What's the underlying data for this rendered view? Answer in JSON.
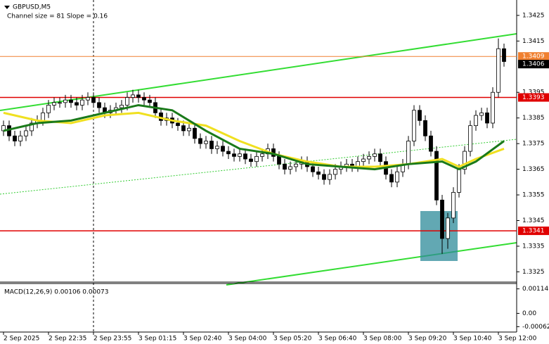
{
  "chart_data": {
    "type": "candlestick",
    "title": "GBPUSD,M5",
    "subtitle": "Channel size = 81 Slope = 0.16",
    "ylim": [
      1.3321,
      1.3431
    ],
    "yticks": [
      1.3425,
      1.3415,
      1.3395,
      1.3385,
      1.3375,
      1.3365,
      1.3355,
      1.3345,
      1.3335,
      1.3325
    ],
    "categories": [
      "2 Sep 2025",
      null,
      null,
      null,
      null,
      null,
      null,
      null,
      "2 Sep 22:35",
      null,
      null,
      null,
      null,
      null,
      null,
      null,
      "2 Sep 23:55",
      null,
      null,
      null,
      null,
      null,
      null,
      null,
      "3 Sep 01:15",
      null,
      null,
      null,
      null,
      null,
      null,
      null,
      "3 Sep 02:40",
      null,
      null,
      null,
      null,
      null,
      null,
      null,
      "3 Sep 04:00",
      null,
      null,
      null,
      null,
      null,
      null,
      null,
      "3 Sep 05:20",
      null,
      null,
      null,
      null,
      null,
      null,
      null,
      "3 Sep 06:40",
      null,
      null,
      null,
      null,
      null,
      null,
      null,
      "3 Sep 08:00",
      null,
      null,
      null,
      null,
      null,
      null,
      null,
      "3 Sep 09:20",
      null,
      null,
      null,
      null,
      null,
      null,
      null,
      "3 Sep 10:40",
      null,
      null,
      null,
      null,
      null,
      null,
      null,
      "3 Sep 12:00",
      null
    ],
    "open": [
      1.338,
      1.3382,
      1.3378,
      1.3376,
      1.3378,
      1.338,
      1.3383,
      1.3384,
      1.3387,
      1.339,
      1.3391,
      1.3391,
      1.3392,
      1.3391,
      1.339,
      1.3392,
      1.3393,
      1.3391,
      1.3389,
      1.3387,
      1.3388,
      1.3389,
      1.339,
      1.3393,
      1.3394,
      1.3393,
      1.3392,
      1.3391,
      1.3387,
      1.3384,
      1.3385,
      1.3383,
      1.3382,
      1.338,
      1.3381,
      1.3377,
      1.3375,
      1.3376,
      1.3373,
      1.3374,
      1.3372,
      1.3371,
      1.337,
      1.3371,
      1.3369,
      1.3368,
      1.337,
      1.3371,
      1.3373,
      1.337,
      1.3367,
      1.3365,
      1.3366,
      1.3367,
      1.3368,
      1.3366,
      1.3364,
      1.3363,
      1.3361,
      1.3363,
      1.3365,
      1.3366,
      1.3367,
      1.3366,
      1.3368,
      1.3369,
      1.337,
      1.3371,
      1.3368,
      1.3363,
      1.336,
      1.3364,
      1.3367,
      1.3376,
      1.3388,
      1.3384,
      1.3378,
      1.3372,
      1.3353,
      1.3338,
      1.3346,
      1.3356,
      1.3365,
      1.3372,
      1.3382,
      1.3386,
      1.3387,
      1.3383,
      1.3395,
      1.3412
    ],
    "high": [
      1.3384,
      1.3384,
      1.338,
      1.338,
      1.3382,
      1.3385,
      1.3386,
      1.3389,
      1.3392,
      1.3393,
      1.3393,
      1.3394,
      1.3394,
      1.3393,
      1.3394,
      1.3395,
      1.3395,
      1.3393,
      1.3391,
      1.339,
      1.3391,
      1.3392,
      1.3395,
      1.3396,
      1.3396,
      1.3395,
      1.3394,
      1.3393,
      1.3389,
      1.3387,
      1.3387,
      1.3385,
      1.3384,
      1.3383,
      1.3383,
      1.3379,
      1.3378,
      1.3378,
      1.3376,
      1.3376,
      1.3374,
      1.3373,
      1.3373,
      1.3373,
      1.3371,
      1.3372,
      1.3373,
      1.3375,
      1.3375,
      1.3372,
      1.3369,
      1.3368,
      1.3369,
      1.337,
      1.337,
      1.3368,
      1.3366,
      1.3365,
      1.3365,
      1.3367,
      1.3368,
      1.3369,
      1.3369,
      1.337,
      1.3371,
      1.3372,
      1.3373,
      1.3373,
      1.337,
      1.3365,
      1.3366,
      1.3369,
      1.3378,
      1.339,
      1.339,
      1.3386,
      1.338,
      1.3374,
      1.3355,
      1.3348,
      1.3358,
      1.3367,
      1.3374,
      1.3384,
      1.3388,
      1.3389,
      1.3389,
      1.3397,
      1.3416,
      1.3414
    ],
    "low": [
      1.3378,
      1.3376,
      1.3374,
      1.3374,
      1.3376,
      1.3378,
      1.3381,
      1.3382,
      1.3385,
      1.3388,
      1.3389,
      1.3389,
      1.3389,
      1.3388,
      1.3388,
      1.339,
      1.3389,
      1.3387,
      1.3385,
      1.3385,
      1.3386,
      1.3387,
      1.3388,
      1.3391,
      1.3391,
      1.339,
      1.3389,
      1.3385,
      1.3382,
      1.3382,
      1.3381,
      1.338,
      1.3378,
      1.3378,
      1.3375,
      1.3373,
      1.3373,
      1.3371,
      1.3371,
      1.337,
      1.3369,
      1.3368,
      1.3368,
      1.3367,
      1.3366,
      1.3366,
      1.3368,
      1.3369,
      1.3368,
      1.3365,
      1.3363,
      1.3363,
      1.3364,
      1.3365,
      1.3364,
      1.3362,
      1.3361,
      1.3359,
      1.3359,
      1.3361,
      1.3363,
      1.3364,
      1.3364,
      1.3364,
      1.3366,
      1.3367,
      1.3368,
      1.3366,
      1.3361,
      1.3358,
      1.3358,
      1.3362,
      1.3365,
      1.3374,
      1.3382,
      1.3376,
      1.337,
      1.3351,
      1.3332,
      1.3334,
      1.3344,
      1.3354,
      1.3363,
      1.337,
      1.338,
      1.3384,
      1.3381,
      1.3381,
      1.3393,
      1.3405
    ],
    "close": [
      1.3382,
      1.3378,
      1.3376,
      1.3378,
      1.338,
      1.3383,
      1.3384,
      1.3387,
      1.339,
      1.3391,
      1.3391,
      1.3392,
      1.3391,
      1.339,
      1.3392,
      1.3393,
      1.3391,
      1.3389,
      1.3387,
      1.3388,
      1.3389,
      1.339,
      1.3393,
      1.3394,
      1.3393,
      1.3392,
      1.3391,
      1.3387,
      1.3384,
      1.3385,
      1.3383,
      1.3382,
      1.338,
      1.3381,
      1.3377,
      1.3375,
      1.3376,
      1.3373,
      1.3374,
      1.3372,
      1.3371,
      1.337,
      1.3371,
      1.3369,
      1.3368,
      1.337,
      1.3371,
      1.3373,
      1.337,
      1.3367,
      1.3365,
      1.3366,
      1.3367,
      1.3368,
      1.3366,
      1.3364,
      1.3363,
      1.3361,
      1.3363,
      1.3365,
      1.3366,
      1.3367,
      1.3366,
      1.3368,
      1.3369,
      1.337,
      1.3371,
      1.3368,
      1.3363,
      1.336,
      1.3364,
      1.3367,
      1.3376,
      1.3388,
      1.3384,
      1.3378,
      1.3372,
      1.3353,
      1.3338,
      1.3346,
      1.3356,
      1.3365,
      1.3372,
      1.3382,
      1.3386,
      1.3387,
      1.3383,
      1.3395,
      1.3412,
      1.3407
    ],
    "moving_averages": [
      {
        "color": "#f0e020",
        "x": [
          0,
          6,
          12,
          18,
          24,
          30,
          36,
          42,
          48,
          54,
          60,
          66,
          72,
          78,
          81,
          84,
          89
        ],
        "values": [
          1.3387,
          1.3384,
          1.3383,
          1.3386,
          1.3387,
          1.3384,
          1.3382,
          1.3376,
          1.3371,
          1.3368,
          1.3366,
          1.3366,
          1.3367,
          1.3369,
          1.3366,
          1.3369,
          1.3373
        ]
      },
      {
        "color": "#1a7a1a",
        "x": [
          0,
          6,
          12,
          18,
          24,
          30,
          36,
          42,
          48,
          54,
          60,
          66,
          72,
          78,
          81,
          84,
          89
        ],
        "values": [
          1.338,
          1.3383,
          1.3384,
          1.3387,
          1.339,
          1.3388,
          1.338,
          1.3373,
          1.3371,
          1.3367,
          1.3366,
          1.3365,
          1.3367,
          1.3368,
          1.3365,
          1.3368,
          1.3376
        ]
      }
    ],
    "levels": [
      {
        "value": 1.3409,
        "color": "#f08030"
      },
      {
        "value": 1.3393,
        "color": "#e00000"
      },
      {
        "value": 1.3341,
        "color": "#e00000"
      }
    ],
    "current_price": 1.3406,
    "macd": {
      "label": "MACD(12,26,9) 0.00106 0.00073",
      "ylim": [
        -0.00087,
        0.00139
      ],
      "yticks": [
        0.00114,
        {
          "value": 0,
          "label": "0.00"
        },
        -0.00062
      ]
    }
  }
}
